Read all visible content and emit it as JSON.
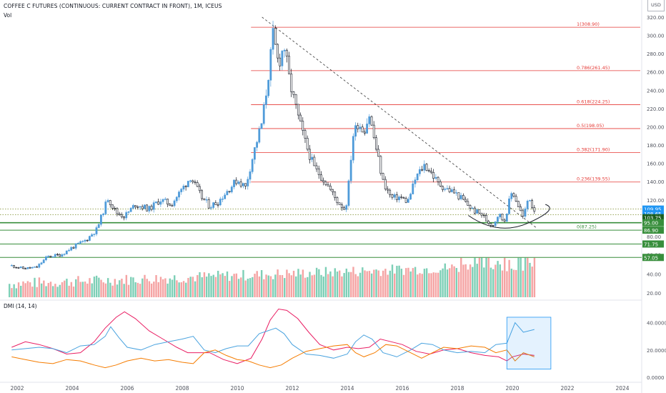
{
  "header": {
    "title": "COFFEE C FUTURES (CONTINUOUS: CURRENT CONTRACT IN FRONT), 1M, ICEUS",
    "volume_label": "Vol",
    "indicator_label": "DMI (14, 14)",
    "currency": "USD"
  },
  "chart_data": {
    "type": "candlestick",
    "instrument": "COFFEE C FUTURES (CONTINUOUS: CURRENT CONTRACT IN FRONT)",
    "interval": "1M",
    "exchange": "ICEUS",
    "x_range": [
      2001.75,
      2025.4
    ],
    "price_axis": {
      "range": [
        15,
        327
      ],
      "ticks": [
        20,
        40,
        60,
        80,
        100,
        120,
        140,
        160,
        180,
        200,
        220,
        240,
        260,
        280,
        300,
        320
      ]
    },
    "price_path": [
      [
        2001.8,
        48
      ],
      [
        2002.2,
        45
      ],
      [
        2002.7,
        46
      ],
      [
        2003.1,
        58
      ],
      [
        2003.6,
        60
      ],
      [
        2004.0,
        68
      ],
      [
        2004.5,
        76
      ],
      [
        2004.9,
        88
      ],
      [
        2005.3,
        122
      ],
      [
        2005.6,
        106
      ],
      [
        2005.9,
        102
      ],
      [
        2006.3,
        115
      ],
      [
        2006.8,
        110
      ],
      [
        2007.2,
        120
      ],
      [
        2007.6,
        115
      ],
      [
        2008.0,
        132
      ],
      [
        2008.3,
        145
      ],
      [
        2008.7,
        123
      ],
      [
        2009.0,
        113
      ],
      [
        2009.3,
        118
      ],
      [
        2009.7,
        132
      ],
      [
        2010.0,
        142
      ],
      [
        2010.3,
        134
      ],
      [
        2010.6,
        172
      ],
      [
        2010.9,
        205
      ],
      [
        2011.1,
        248
      ],
      [
        2011.3,
        300
      ],
      [
        2011.5,
        268
      ],
      [
        2011.7,
        290
      ],
      [
        2011.9,
        250
      ],
      [
        2012.2,
        212
      ],
      [
        2012.5,
        180
      ],
      [
        2012.8,
        155
      ],
      [
        2013.2,
        140
      ],
      [
        2013.6,
        120
      ],
      [
        2013.9,
        110
      ],
      [
        2014.0,
        120
      ],
      [
        2014.2,
        190
      ],
      [
        2014.4,
        205
      ],
      [
        2014.6,
        195
      ],
      [
        2014.8,
        213
      ],
      [
        2015.0,
        183
      ],
      [
        2015.3,
        140
      ],
      [
        2015.6,
        122
      ],
      [
        2015.9,
        123
      ],
      [
        2016.2,
        118
      ],
      [
        2016.5,
        145
      ],
      [
        2016.8,
        158
      ],
      [
        2017.0,
        152
      ],
      [
        2017.3,
        138
      ],
      [
        2017.6,
        132
      ],
      [
        2017.9,
        128
      ],
      [
        2018.2,
        120
      ],
      [
        2018.6,
        108
      ],
      [
        2018.9,
        104
      ],
      [
        2019.1,
        96
      ],
      [
        2019.3,
        93
      ],
      [
        2019.5,
        105
      ],
      [
        2019.7,
        96
      ],
      [
        2019.9,
        120
      ],
      [
        2020.0,
        130
      ],
      [
        2020.2,
        115
      ],
      [
        2020.4,
        100
      ],
      [
        2020.6,
        125
      ],
      [
        2020.75,
        110
      ]
    ],
    "fibonacci": [
      {
        "label": "1(308.90)",
        "price": 308.9
      },
      {
        "label": "0.786(261.45)",
        "price": 261.45
      },
      {
        "label": "0.618(224.25)",
        "price": 224.25
      },
      {
        "label": "0.5(198.05)",
        "price": 198.05
      },
      {
        "label": "0.382(171.90)",
        "price": 171.9
      },
      {
        "label": "0.236(139.55)",
        "price": 139.55
      },
      {
        "label": "0(87.25)",
        "price": 87.25
      }
    ],
    "trendline": {
      "from": [
        2010.9,
        320
      ],
      "to": [
        2020.85,
        90
      ]
    },
    "horizontal_levels": [
      {
        "label": "95.00",
        "price": 95.0,
        "color": "#388e3c"
      },
      {
        "label": "86.90",
        "price": 86.9,
        "color": "#388e3c"
      },
      {
        "label": "71.75",
        "price": 71.75,
        "color": "#388e3c"
      },
      {
        "label": "57.05",
        "price": 57.05,
        "color": "#388e3c"
      }
    ],
    "dotted_levels": [
      109.95,
      103.75
    ],
    "price_labels": [
      {
        "label": "109.95",
        "price": 109.95,
        "color": "#2196f3"
      },
      {
        "label": "108.65",
        "price": 104.8,
        "color": "#2196f3"
      },
      {
        "label": "103.75",
        "price": 100.5,
        "color": "#1b5e20"
      }
    ],
    "volume_axis_ticks": [
      20,
      40
    ],
    "dmi": {
      "axis_ticks": [
        "40.0000",
        "20.0000",
        "0.0000"
      ],
      "adx": [
        [
          2001.8,
          22
        ],
        [
          2002.3,
          26
        ],
        [
          2002.8,
          24
        ],
        [
          2003.3,
          21
        ],
        [
          2003.8,
          17
        ],
        [
          2004.3,
          18
        ],
        [
          2004.8,
          26
        ],
        [
          2005.2,
          36
        ],
        [
          2005.6,
          44
        ],
        [
          2005.9,
          48
        ],
        [
          2006.3,
          43
        ],
        [
          2006.8,
          34
        ],
        [
          2007.3,
          28
        ],
        [
          2007.8,
          22
        ],
        [
          2008.2,
          18
        ],
        [
          2008.6,
          18
        ],
        [
          2009.0,
          18
        ],
        [
          2009.5,
          13
        ],
        [
          2010.0,
          10
        ],
        [
          2010.5,
          14
        ],
        [
          2010.9,
          28
        ],
        [
          2011.2,
          42
        ],
        [
          2011.5,
          50
        ],
        [
          2011.8,
          49
        ],
        [
          2012.2,
          43
        ],
        [
          2012.6,
          33
        ],
        [
          2013.0,
          24
        ],
        [
          2013.5,
          20
        ],
        [
          2014.0,
          22
        ],
        [
          2014.4,
          21
        ],
        [
          2014.8,
          22
        ],
        [
          2015.2,
          28
        ],
        [
          2015.6,
          26
        ],
        [
          2016.0,
          24
        ],
        [
          2016.5,
          19
        ],
        [
          2017.0,
          17
        ],
        [
          2017.5,
          20
        ],
        [
          2018.0,
          21
        ],
        [
          2018.5,
          18
        ],
        [
          2019.0,
          16
        ],
        [
          2019.5,
          15
        ],
        [
          2019.8,
          12
        ],
        [
          2020.0,
          15
        ],
        [
          2020.4,
          17
        ],
        [
          2020.8,
          16
        ]
      ],
      "plus_di": [
        [
          2001.8,
          20
        ],
        [
          2002.3,
          21
        ],
        [
          2002.8,
          22
        ],
        [
          2003.3,
          21
        ],
        [
          2003.8,
          18
        ],
        [
          2004.3,
          23
        ],
        [
          2004.8,
          24
        ],
        [
          2005.2,
          30
        ],
        [
          2005.4,
          37
        ],
        [
          2005.7,
          29
        ],
        [
          2006.0,
          22
        ],
        [
          2006.5,
          20
        ],
        [
          2007.0,
          24
        ],
        [
          2007.5,
          26
        ],
        [
          2008.0,
          28
        ],
        [
          2008.4,
          30
        ],
        [
          2008.8,
          20
        ],
        [
          2009.2,
          18
        ],
        [
          2009.6,
          21
        ],
        [
          2010.0,
          23
        ],
        [
          2010.4,
          23
        ],
        [
          2010.8,
          32
        ],
        [
          2011.1,
          34
        ],
        [
          2011.4,
          36
        ],
        [
          2011.7,
          32
        ],
        [
          2012.0,
          24
        ],
        [
          2012.5,
          17
        ],
        [
          2013.0,
          16
        ],
        [
          2013.5,
          14
        ],
        [
          2014.0,
          17
        ],
        [
          2014.3,
          26
        ],
        [
          2014.6,
          31
        ],
        [
          2014.9,
          28
        ],
        [
          2015.3,
          18
        ],
        [
          2015.8,
          15
        ],
        [
          2016.3,
          20
        ],
        [
          2016.7,
          25
        ],
        [
          2017.1,
          24
        ],
        [
          2017.5,
          20
        ],
        [
          2018.0,
          18
        ],
        [
          2018.5,
          19
        ],
        [
          2019.0,
          18
        ],
        [
          2019.4,
          24
        ],
        [
          2019.8,
          25
        ],
        [
          2020.1,
          40
        ],
        [
          2020.4,
          33
        ],
        [
          2020.8,
          35
        ]
      ],
      "minus_di": [
        [
          2001.8,
          15
        ],
        [
          2002.3,
          13
        ],
        [
          2002.8,
          11
        ],
        [
          2003.3,
          10
        ],
        [
          2003.8,
          13
        ],
        [
          2004.3,
          12
        ],
        [
          2004.8,
          9
        ],
        [
          2005.2,
          7
        ],
        [
          2005.6,
          9
        ],
        [
          2006.0,
          12
        ],
        [
          2006.5,
          14
        ],
        [
          2007.0,
          12
        ],
        [
          2007.5,
          13
        ],
        [
          2008.0,
          11
        ],
        [
          2008.4,
          10
        ],
        [
          2008.8,
          18
        ],
        [
          2009.2,
          20
        ],
        [
          2009.6,
          16
        ],
        [
          2010.0,
          13
        ],
        [
          2010.4,
          12
        ],
        [
          2010.8,
          9
        ],
        [
          2011.2,
          7
        ],
        [
          2011.6,
          9
        ],
        [
          2012.0,
          14
        ],
        [
          2012.5,
          19
        ],
        [
          2013.0,
          21
        ],
        [
          2013.5,
          23
        ],
        [
          2014.0,
          24
        ],
        [
          2014.3,
          18
        ],
        [
          2014.6,
          15
        ],
        [
          2015.0,
          18
        ],
        [
          2015.4,
          24
        ],
        [
          2015.8,
          23
        ],
        [
          2016.3,
          18
        ],
        [
          2016.7,
          14
        ],
        [
          2017.1,
          18
        ],
        [
          2017.5,
          22
        ],
        [
          2018.0,
          21
        ],
        [
          2018.5,
          23
        ],
        [
          2019.0,
          22
        ],
        [
          2019.4,
          18
        ],
        [
          2019.8,
          20
        ],
        [
          2020.1,
          12
        ],
        [
          2020.4,
          18
        ],
        [
          2020.8,
          15
        ]
      ]
    },
    "x_axis_labels": [
      "2002",
      "2004",
      "2006",
      "2008",
      "2010",
      "2012",
      "2014",
      "2016",
      "2018",
      "2020",
      "2022",
      "2024"
    ]
  }
}
